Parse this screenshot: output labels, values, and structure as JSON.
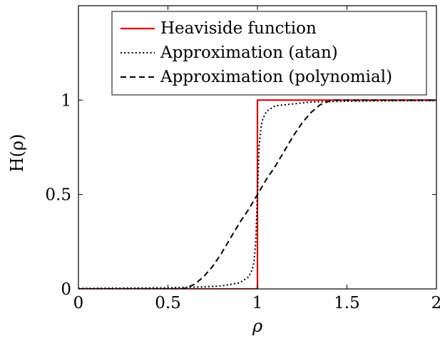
{
  "chart_data": {
    "type": "line",
    "title": "",
    "xlabel": "ρ",
    "ylabel": "H(ρ)",
    "xlim": [
      0,
      2
    ],
    "ylim": [
      0,
      1.5
    ],
    "xticks": [
      0,
      0.5,
      1,
      1.5,
      2
    ],
    "xtick_labels": [
      "0",
      "0.5",
      "1",
      "1.5",
      "2"
    ],
    "yticks": [
      0,
      0.5,
      1
    ],
    "ytick_labels": [
      "0",
      "0.5",
      "1"
    ],
    "grid": false,
    "legend_position": "top-right",
    "series": [
      {
        "name": "Heaviside function",
        "style": "solid",
        "color": "#e0000b",
        "x": [
          0,
          1,
          1,
          2
        ],
        "y": [
          0,
          0,
          1,
          1
        ]
      },
      {
        "name": "Approximation (atan)",
        "style": "dotted",
        "color": "#000000",
        "x": [
          0,
          0.5,
          0.7,
          0.8,
          0.9,
          0.95,
          0.97,
          0.98,
          0.99,
          1.0,
          1.01,
          1.02,
          1.03,
          1.05,
          1.1,
          1.2,
          1.3,
          1.5,
          1.7,
          2.0
        ],
        "y": [
          0.003,
          0.006,
          0.011,
          0.016,
          0.032,
          0.063,
          0.1,
          0.14,
          0.24,
          0.5,
          0.76,
          0.86,
          0.9,
          0.94,
          0.97,
          0.98,
          0.99,
          0.994,
          0.996,
          0.997
        ]
      },
      {
        "name": "Approximation (polynomial)",
        "style": "dashed",
        "color": "#000000",
        "x": [
          0,
          0.4,
          0.58,
          0.6,
          0.65,
          0.7,
          0.75,
          0.8,
          0.85,
          0.9,
          0.95,
          1.0,
          1.05,
          1.1,
          1.15,
          1.2,
          1.25,
          1.3,
          1.35,
          1.4,
          1.42,
          1.6,
          2.0
        ],
        "y": [
          0,
          0,
          0,
          0.005,
          0.025,
          0.065,
          0.12,
          0.19,
          0.27,
          0.35,
          0.42,
          0.5,
          0.58,
          0.65,
          0.73,
          0.81,
          0.88,
          0.935,
          0.975,
          0.995,
          1.0,
          1.0,
          1.0
        ]
      }
    ]
  }
}
